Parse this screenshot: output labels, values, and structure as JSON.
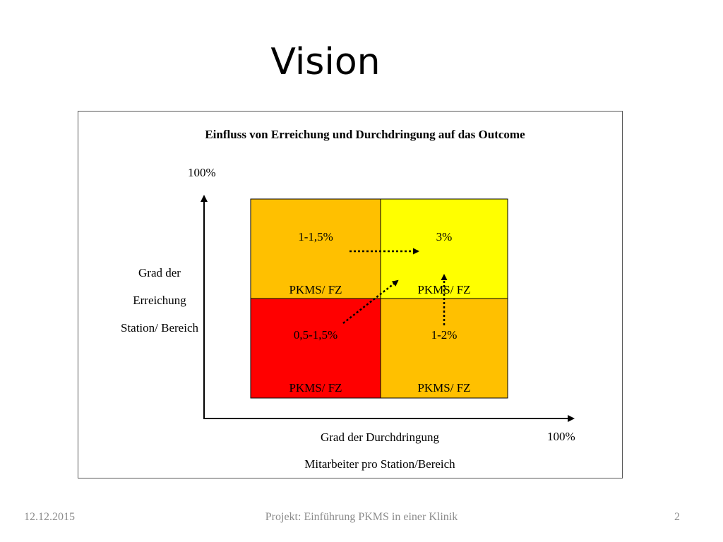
{
  "slide": {
    "title": "Vision"
  },
  "diagram": {
    "title": "Einfluss von Erreichung und Durchdringung auf das Outcome",
    "y_axis": {
      "max_label": "100%",
      "label_lines": [
        "Grad der",
        "Erreichung",
        "Station/ Bereich"
      ]
    },
    "x_axis": {
      "max_label": "100%",
      "label_lines": [
        "Grad der Durchdringung",
        "Mitarbeiter pro Station/Bereich"
      ]
    },
    "cells": {
      "top_left": {
        "value": "1-1,5%",
        "label": "PKMS/ FZ",
        "color": "#FFC000"
      },
      "top_right": {
        "value": "3%",
        "label": "PKMS/ FZ",
        "color": "#FFFF00"
      },
      "bottom_left": {
        "value": "0,5-1,5%",
        "label": "PKMS/ FZ",
        "color": "#FF0000"
      },
      "bottom_right": {
        "value": "1-2%",
        "label": "PKMS/ FZ",
        "color": "#FFC000"
      }
    }
  },
  "footer": {
    "date": "12.12.2015",
    "project": "Projekt: Einführung PKMS in einer Klinik",
    "page": "2"
  }
}
